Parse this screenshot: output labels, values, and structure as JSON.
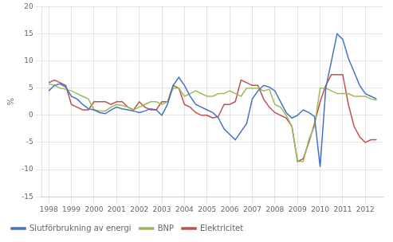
{
  "chart_data": {
    "type": "line",
    "ylabel": "%",
    "x": [
      1998.0,
      1998.25,
      1998.5,
      1998.75,
      1999.0,
      1999.25,
      1999.5,
      1999.75,
      2000.0,
      2000.25,
      2000.5,
      2000.75,
      2001.0,
      2001.25,
      2001.5,
      2001.75,
      2002.0,
      2002.25,
      2002.5,
      2002.75,
      2003.0,
      2003.25,
      2003.5,
      2003.75,
      2004.0,
      2004.25,
      2004.5,
      2004.75,
      2005.0,
      2005.25,
      2005.5,
      2005.75,
      2006.0,
      2006.25,
      2006.5,
      2006.75,
      2007.0,
      2007.25,
      2007.5,
      2007.75,
      2008.0,
      2008.25,
      2008.5,
      2008.75,
      2009.0,
      2009.25,
      2009.5,
      2009.75,
      2010.0,
      2010.25,
      2010.5,
      2010.75,
      2011.0,
      2011.25,
      2011.5,
      2011.75,
      2012.0,
      2012.25,
      2012.5
    ],
    "series": [
      {
        "name": "Slutförbrukning av energi",
        "color": "#4472c4",
        "values": [
          4.5,
          5.5,
          5.8,
          5.2,
          3.5,
          3.0,
          2.0,
          1.2,
          1.0,
          0.5,
          0.3,
          1.0,
          1.5,
          1.2,
          1.0,
          0.8,
          0.5,
          0.8,
          1.2,
          1.0,
          0.0,
          2.0,
          5.5,
          7.0,
          5.5,
          3.5,
          2.0,
          1.5,
          1.0,
          0.5,
          -0.5,
          -2.5,
          -3.5,
          -4.5,
          -3.0,
          -1.5,
          3.0,
          4.5,
          5.5,
          5.2,
          4.5,
          2.5,
          0.5,
          -0.5,
          0.0,
          1.0,
          0.5,
          -0.2,
          -9.5,
          5.0,
          10.0,
          15.0,
          14.0,
          10.5,
          8.0,
          5.5,
          4.0,
          3.5,
          3.0
        ]
      },
      {
        "name": "BNP",
        "color": "#9bbb59",
        "values": [
          5.8,
          5.5,
          5.0,
          4.8,
          4.5,
          4.0,
          3.5,
          3.0,
          1.0,
          0.8,
          0.8,
          1.5,
          2.0,
          1.8,
          1.5,
          1.0,
          1.5,
          2.0,
          2.5,
          2.5,
          2.0,
          2.5,
          5.0,
          5.0,
          3.5,
          4.0,
          4.5,
          4.0,
          3.5,
          3.5,
          4.0,
          4.0,
          4.5,
          4.0,
          3.5,
          5.0,
          5.0,
          5.0,
          4.5,
          4.8,
          2.0,
          1.5,
          0.0,
          -2.0,
          -8.5,
          -8.5,
          -4.5,
          -2.0,
          5.0,
          5.0,
          4.5,
          4.0,
          4.0,
          4.0,
          3.5,
          3.5,
          3.5,
          3.0,
          2.8
        ]
      },
      {
        "name": "Elektricitet",
        "color": "#c0504d",
        "values": [
          6.0,
          6.5,
          6.0,
          5.5,
          2.0,
          1.5,
          1.0,
          1.0,
          2.5,
          2.5,
          2.5,
          2.0,
          2.5,
          2.5,
          1.5,
          1.0,
          2.5,
          1.5,
          1.0,
          1.0,
          2.5,
          2.5,
          5.5,
          5.0,
          2.0,
          1.5,
          0.5,
          0.0,
          0.0,
          -0.5,
          -0.2,
          2.0,
          2.0,
          2.5,
          6.5,
          6.0,
          5.5,
          5.5,
          3.0,
          1.5,
          0.5,
          0.0,
          -0.5,
          -2.0,
          -8.5,
          -8.0,
          -5.0,
          -1.5,
          2.5,
          5.5,
          7.5,
          7.5,
          7.5,
          2.0,
          -2.0,
          -4.0,
          -5.0,
          -4.5,
          -4.5
        ]
      }
    ],
    "xlim": [
      1997.7,
      2012.8
    ],
    "xticks": [
      1998,
      1999,
      2000,
      2001,
      2002,
      2003,
      2004,
      2005,
      2006,
      2007,
      2008,
      2009,
      2010,
      2011,
      2012
    ],
    "ylim": [
      -15,
      20
    ],
    "yticks": [
      -15,
      -10,
      -5,
      0,
      5,
      10,
      15,
      20
    ],
    "grid": true,
    "legend": "lower left"
  }
}
